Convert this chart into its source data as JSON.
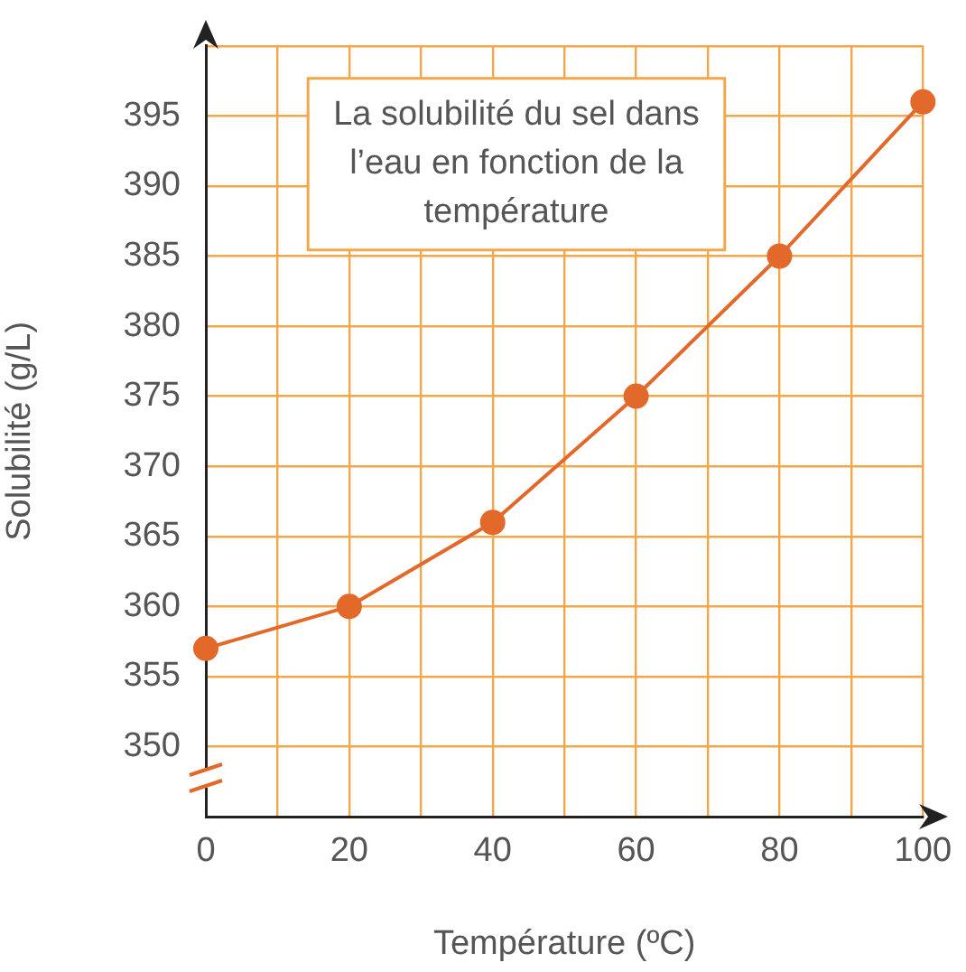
{
  "chart_data": {
    "type": "line",
    "title": "La solubilité du sel dans l’eau en fonction de la température",
    "xlabel": "Température (ºC)",
    "ylabel": "Solubilité (g/L)",
    "x": [
      0,
      20,
      40,
      60,
      80,
      100
    ],
    "series": [
      {
        "color": "#e2692a",
        "values": [
          357,
          360,
          366,
          375,
          385,
          396
        ]
      }
    ],
    "xlim": [
      0,
      100
    ],
    "xticks": [
      0,
      {
        "value": 10,
        "label": null
      },
      20,
      {
        "value": 30,
        "label": null
      },
      40,
      {
        "value": 50,
        "label": null
      },
      60,
      {
        "value": 70,
        "label": null
      },
      80,
      {
        "value": 90,
        "label": null
      },
      100
    ],
    "ylim": [
      345,
      400
    ],
    "yticks": [
      350,
      355,
      360,
      365,
      370,
      375,
      380,
      385,
      390,
      395,
      {
        "value": 400,
        "label": null
      }
    ],
    "grid": true,
    "legend": false,
    "marker": "circle",
    "line_style": "solid"
  }
}
